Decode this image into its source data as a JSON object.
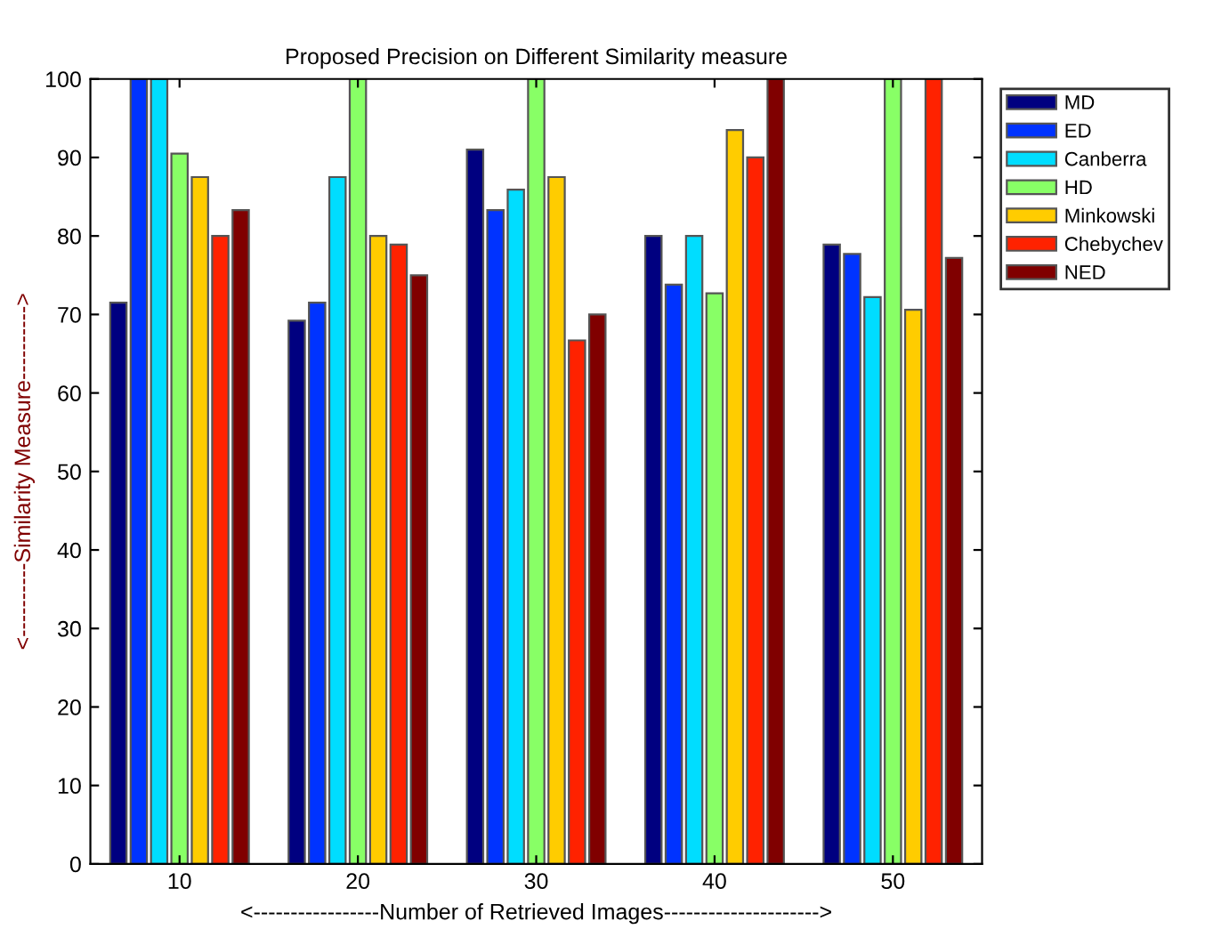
{
  "chart_data": {
    "type": "bar",
    "title": "Proposed Precision on Different Similarity measure",
    "xlabel": "<-----------------Number of Retrieved Images--------------------->",
    "ylabel": "<----------Similarity Measure---------->",
    "categories": [
      "10",
      "20",
      "30",
      "40",
      "50"
    ],
    "series": [
      {
        "name": "MD",
        "color": "#000080",
        "values": [
          71.5,
          69.2,
          91,
          80,
          78.9
        ]
      },
      {
        "name": "ED",
        "color": "#0033ff",
        "values": [
          100,
          71.5,
          83.3,
          73.8,
          77.7
        ]
      },
      {
        "name": "Canberra",
        "color": "#00ddff",
        "values": [
          100,
          87.5,
          85.9,
          80,
          72.2
        ]
      },
      {
        "name": "HD",
        "color": "#88ff66",
        "values": [
          90.5,
          100,
          100,
          72.7,
          100
        ]
      },
      {
        "name": "Minkowski",
        "color": "#ffcc00",
        "values": [
          87.5,
          80,
          87.5,
          93.5,
          70.6
        ]
      },
      {
        "name": "Chebychev",
        "color": "#ff2200",
        "values": [
          80,
          78.9,
          66.7,
          90,
          100
        ]
      },
      {
        "name": "NED",
        "color": "#800000",
        "values": [
          83.3,
          75,
          70,
          100,
          77.2
        ]
      }
    ],
    "ylim": [
      0,
      100
    ],
    "yticks": [
      0,
      10,
      20,
      30,
      40,
      50,
      60,
      70,
      80,
      90,
      100
    ],
    "grid": false,
    "legend": "top right"
  }
}
